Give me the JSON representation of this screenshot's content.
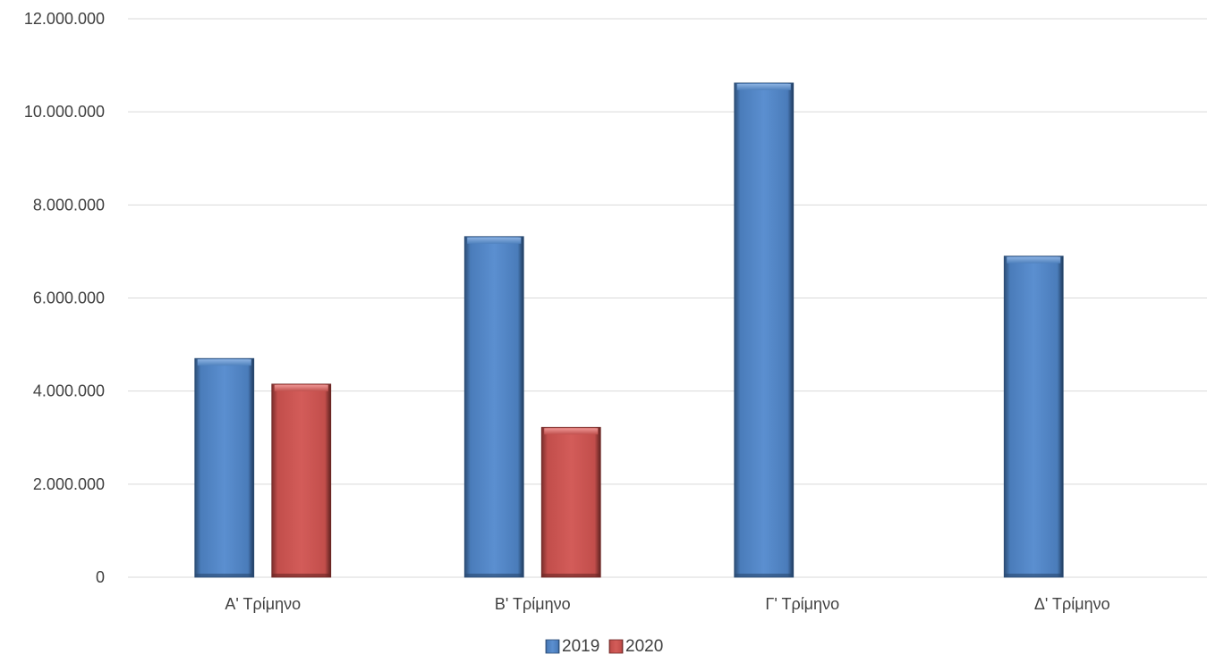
{
  "chart_data": {
    "type": "bar",
    "categories": [
      "Α' Τρίμηνο",
      "Β' Τρίμηνο",
      "Γ' Τρίμηνο",
      "Δ' Τρίμηνο"
    ],
    "series": [
      {
        "name": "2019",
        "values": [
          4700000,
          7320000,
          10620000,
          6900000
        ],
        "color": "#4f81bd"
      },
      {
        "name": "2020",
        "values": [
          4150000,
          3220000,
          null,
          null
        ],
        "color": "#c0504d"
      }
    ],
    "y_ticks": [
      "0",
      "2.000.000",
      "4.000.000",
      "6.000.000",
      "8.000.000",
      "10.000.000",
      "12.000.000"
    ],
    "ylim": [
      0,
      12000000
    ],
    "grid": true,
    "legend_position": "bottom-center"
  }
}
